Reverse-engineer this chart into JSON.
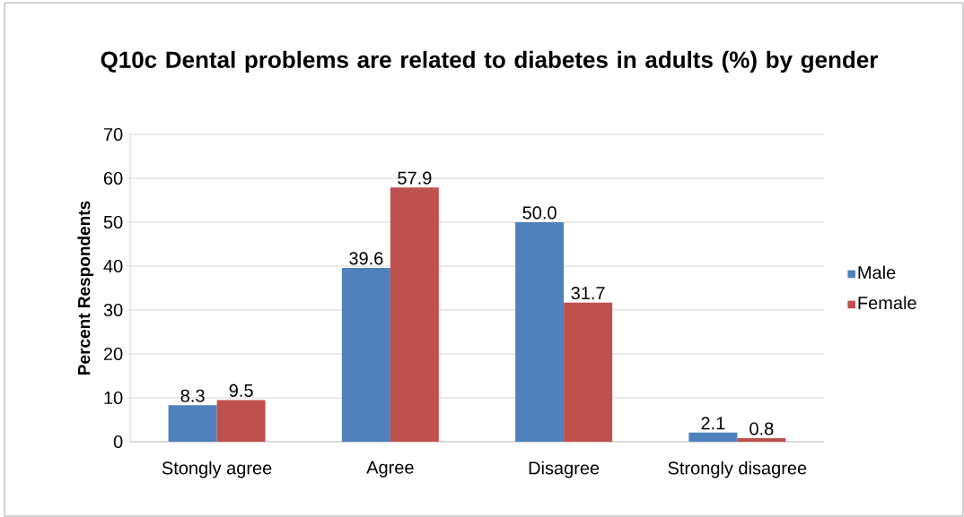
{
  "chart_data": {
    "type": "bar",
    "title": "Q10c Dental problems are related to diabetes in adults (%) by gender",
    "ylabel": "Percent Respondents",
    "categories": [
      "Stongly agree",
      "Agree",
      "Disagree",
      "Strongly disagree"
    ],
    "series": [
      {
        "name": "Male",
        "color": "#4f81bd",
        "values": [
          8.3,
          39.6,
          50.0,
          2.1
        ],
        "value_labels": [
          "8.3",
          "39.6",
          "50.0",
          "2.1"
        ]
      },
      {
        "name": "Female",
        "color": "#c0504d",
        "values": [
          9.5,
          57.9,
          31.7,
          0.8
        ],
        "value_labels": [
          "9.5",
          "57.9",
          "31.7",
          "0.8"
        ]
      }
    ],
    "ylim": [
      0,
      70
    ],
    "yticks": [
      0,
      10,
      20,
      30,
      40,
      50,
      60,
      70
    ],
    "grid": "y",
    "legend": "right"
  }
}
